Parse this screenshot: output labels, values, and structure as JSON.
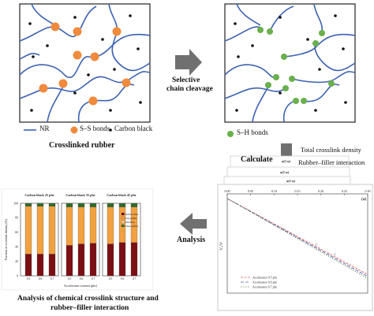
{
  "top_left_panel": {
    "caption": "Crosslinked rubber",
    "legend": {
      "nr": "NR",
      "ss": "S–S bonds",
      "cb": "Carbon black"
    }
  },
  "top_right_panel": {
    "legend": {
      "sh": "S–H bonds"
    }
  },
  "arrows": {
    "selective_line1": "Selective",
    "selective_line2": "chain cleavage",
    "calculate": "Calculate",
    "analysis": "Analysis"
  },
  "calculate_notes": {
    "line1": "Total crosslink density",
    "line2": "Rubber–filler interaction"
  },
  "bottom_caption": {
    "line1": "Analysis of chemical crosslink structure and",
    "line2": "rubber–filler interaction"
  },
  "colors": {
    "chain": "#3d62b0",
    "ss_bond": "#f08a3c",
    "sh_bond": "#6ab04c",
    "carbon_black": "#111111",
    "arrow": "#707070",
    "monosulfide": "#7b0f14",
    "polysulfide": "#f2a140",
    "disulfide": "#2e6b2a"
  },
  "bar_chart": {
    "group_titles": [
      "Carbon black 25 phr",
      "Carbon black 35 phr",
      "Carbon black 45 phr"
    ],
    "ylabel": "Fraction of crosslink density (%)",
    "xlabel": "Accelerator content (phr)",
    "yticks": [
      "0",
      "20",
      "40",
      "60",
      "80",
      "100"
    ],
    "legend": [
      "Rubber-filler",
      "Polysulfide",
      "Disulfide",
      "Monosulfide"
    ],
    "groups": [
      {
        "cats": [
          "0.5",
          "0.6",
          "0.7"
        ]
      },
      {
        "cats": [
          "0.5",
          "0.6",
          "0.7"
        ]
      },
      {
        "cats": [
          "0.5",
          "0.6",
          "0.7"
        ]
      }
    ]
  },
  "chart_data": {
    "type": "bar",
    "title": "",
    "xlabel": "Accelerator content (phr)",
    "ylabel": "Fraction of crosslink density (%)",
    "ylim": [
      0,
      100
    ],
    "categories": [
      "0.5",
      "0.6",
      "0.7",
      "0.5",
      "0.6",
      "0.7",
      "0.5",
      "0.6",
      "0.7"
    ],
    "series": [
      {
        "name": "Monosulfide",
        "values": [
          30,
          30,
          30,
          42,
          44,
          45,
          44,
          46,
          46
        ]
      },
      {
        "name": "Disulfide",
        "values": [
          0,
          0,
          0,
          0,
          0,
          0,
          0,
          0,
          0
        ]
      },
      {
        "name": "Polysulfide",
        "values": [
          66,
          66,
          66,
          53,
          51,
          50,
          51,
          49,
          49
        ]
      },
      {
        "name": "Rubber-filler",
        "values": [
          4,
          4,
          4,
          5,
          5,
          5,
          5,
          5,
          5
        ]
      }
    ]
  },
  "line_chart": {
    "stack_labels": [
      "φ(1-φ)",
      "φ(1-φ)",
      "φ(1-φ)"
    ],
    "xticks": [
      "0.00",
      "0.05",
      "0.10",
      "0.15",
      "0.20",
      "0.25",
      "0.30"
    ],
    "ylabel": "Vₒ/Vʳ",
    "panel_label": "(a)",
    "legend": [
      "Accelerator 0.5 phr",
      "Accelerator 0.6 phr",
      "Accelerator 0.7 phr"
    ]
  },
  "line_chart_data": {
    "type": "line",
    "x": [
      0.0,
      0.3
    ],
    "series": [
      {
        "name": "Accelerator 0.5 phr",
        "values": [
          1.0,
          0.62
        ]
      },
      {
        "name": "Accelerator 0.6 phr",
        "values": [
          1.0,
          0.61
        ]
      },
      {
        "name": "Accelerator 0.7 phr",
        "values": [
          1.0,
          0.6
        ]
      }
    ]
  }
}
